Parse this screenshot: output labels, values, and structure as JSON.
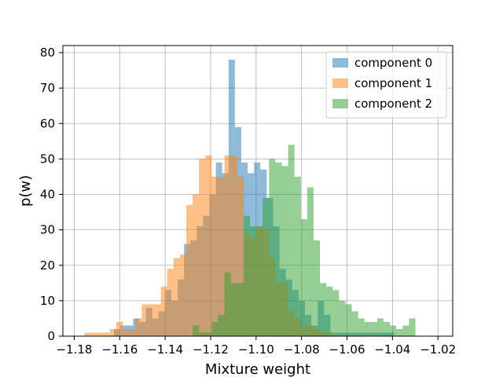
{
  "chart_data": {
    "type": "histogram",
    "title": "",
    "xlabel": "Mixture weight",
    "ylabel": "p(w)",
    "xlim": [
      -1.185,
      -1.0135
    ],
    "ylim": [
      0,
      82
    ],
    "xticks": [
      -1.18,
      -1.16,
      -1.14,
      -1.12,
      -1.1,
      -1.08,
      -1.06,
      -1.04,
      -1.02
    ],
    "xtick_labels": [
      "−1.18",
      "−1.16",
      "−1.14",
      "−1.12",
      "−1.10",
      "−1.08",
      "−1.06",
      "−1.04",
      "−1.02"
    ],
    "yticks": [
      0,
      10,
      20,
      30,
      40,
      50,
      60,
      70,
      80
    ],
    "ytick_labels": [
      "0",
      "10",
      "20",
      "30",
      "40",
      "50",
      "60",
      "70",
      "80"
    ],
    "grid": true,
    "legend_position": "top-right",
    "series": [
      {
        "name": "component 0",
        "color": "#1f77b4",
        "opacity": 0.5,
        "bins": [
          [
            -1.1625,
            -1.1597,
            2
          ],
          [
            -1.1597,
            -1.1569,
            3
          ],
          [
            -1.1569,
            -1.1541,
            3
          ],
          [
            -1.1541,
            -1.1513,
            5
          ],
          [
            -1.1513,
            -1.1485,
            4
          ],
          [
            -1.1485,
            -1.1457,
            8
          ],
          [
            -1.1457,
            -1.1429,
            5
          ],
          [
            -1.1429,
            -1.1401,
            7
          ],
          [
            -1.1401,
            -1.1373,
            13
          ],
          [
            -1.1373,
            -1.1345,
            10
          ],
          [
            -1.1345,
            -1.1317,
            16
          ],
          [
            -1.1317,
            -1.1289,
            26
          ],
          [
            -1.1289,
            -1.1261,
            27
          ],
          [
            -1.1261,
            -1.1233,
            31
          ],
          [
            -1.1233,
            -1.1205,
            34
          ],
          [
            -1.1205,
            -1.1177,
            40
          ],
          [
            -1.1177,
            -1.1149,
            49
          ],
          [
            -1.1149,
            -1.1121,
            46
          ],
          [
            -1.1121,
            -1.1093,
            78
          ],
          [
            -1.1093,
            -1.1065,
            59
          ],
          [
            -1.1065,
            -1.1037,
            49
          ],
          [
            -1.1037,
            -1.1009,
            46
          ],
          [
            -1.1009,
            -1.0981,
            49
          ],
          [
            -1.0981,
            -1.0953,
            47
          ],
          [
            -1.0953,
            -1.0925,
            39
          ],
          [
            -1.0925,
            -1.0897,
            31
          ],
          [
            -1.0897,
            -1.0869,
            19
          ],
          [
            -1.0869,
            -1.0841,
            16
          ],
          [
            -1.0841,
            -1.0813,
            13
          ],
          [
            -1.0813,
            -1.0785,
            10
          ],
          [
            -1.0785,
            -1.0757,
            6
          ],
          [
            -1.0757,
            -1.0729,
            3
          ],
          [
            -1.0729,
            -1.0701,
            10
          ],
          [
            -1.0701,
            -1.0673,
            6
          ],
          [
            -1.0673,
            -1.0645,
            1
          ],
          [
            -1.0645,
            -1.0617,
            1
          ],
          [
            -1.0617,
            -1.0589,
            1
          ],
          [
            -1.0589,
            -1.0561,
            1
          ],
          [
            -1.0561,
            -1.0533,
            1
          ],
          [
            -1.0533,
            -1.0505,
            1
          ],
          [
            -1.0505,
            -1.0477,
            1
          ],
          [
            -1.0477,
            -1.0449,
            1
          ],
          [
            -1.0449,
            -1.0421,
            1
          ],
          [
            -1.0421,
            -1.0393,
            1
          ]
        ]
      },
      {
        "name": "component 1",
        "color": "#ff7f0e",
        "opacity": 0.5,
        "bins": [
          [
            -1.1755,
            -1.1727,
            1
          ],
          [
            -1.1727,
            -1.1699,
            1
          ],
          [
            -1.1699,
            -1.1671,
            1
          ],
          [
            -1.1671,
            -1.1643,
            1
          ],
          [
            -1.1643,
            -1.1615,
            2
          ],
          [
            -1.1615,
            -1.1587,
            4
          ],
          [
            -1.1587,
            -1.1559,
            2
          ],
          [
            -1.1559,
            -1.1531,
            2
          ],
          [
            -1.1531,
            -1.1503,
            5
          ],
          [
            -1.1503,
            -1.1475,
            9
          ],
          [
            -1.1475,
            -1.1447,
            9
          ],
          [
            -1.1447,
            -1.1419,
            9
          ],
          [
            -1.1419,
            -1.1391,
            14
          ],
          [
            -1.1391,
            -1.1363,
            19
          ],
          [
            -1.1363,
            -1.1335,
            22
          ],
          [
            -1.1335,
            -1.1307,
            23
          ],
          [
            -1.1307,
            -1.1279,
            37
          ],
          [
            -1.1279,
            -1.1251,
            40
          ],
          [
            -1.1251,
            -1.1223,
            50
          ],
          [
            -1.1223,
            -1.1195,
            51
          ],
          [
            -1.1195,
            -1.1167,
            45
          ],
          [
            -1.1167,
            -1.1139,
            45
          ],
          [
            -1.1139,
            -1.1111,
            51
          ],
          [
            -1.1111,
            -1.1083,
            51
          ],
          [
            -1.1083,
            -1.1055,
            45
          ],
          [
            -1.1055,
            -1.1027,
            29
          ],
          [
            -1.1027,
            -1.0999,
            28
          ],
          [
            -1.0999,
            -1.0971,
            31
          ],
          [
            -1.0971,
            -1.0943,
            30
          ],
          [
            -1.0943,
            -1.0915,
            22
          ],
          [
            -1.0915,
            -1.0887,
            15
          ],
          [
            -1.0887,
            -1.0859,
            15
          ],
          [
            -1.0859,
            -1.0831,
            7
          ],
          [
            -1.0831,
            -1.0803,
            5
          ],
          [
            -1.0803,
            -1.0775,
            3
          ],
          [
            -1.0775,
            -1.0747,
            3
          ],
          [
            -1.0747,
            -1.0719,
            2
          ],
          [
            -1.0719,
            -1.0691,
            1
          ],
          [
            -1.0691,
            -1.0663,
            1
          ]
        ]
      },
      {
        "name": "component 2",
        "color": "#2ca02c",
        "opacity": 0.5,
        "bins": [
          [
            -1.1279,
            -1.1251,
            3
          ],
          [
            -1.1251,
            -1.1223,
            1
          ],
          [
            -1.1223,
            -1.1195,
            1
          ],
          [
            -1.1195,
            -1.1167,
            4
          ],
          [
            -1.1167,
            -1.1139,
            6
          ],
          [
            -1.1139,
            -1.1111,
            18
          ],
          [
            -1.1111,
            -1.1083,
            15
          ],
          [
            -1.1083,
            -1.1055,
            15
          ],
          [
            -1.1055,
            -1.1027,
            34
          ],
          [
            -1.1027,
            -1.0999,
            31
          ],
          [
            -1.0999,
            -1.0971,
            31
          ],
          [
            -1.0971,
            -1.0943,
            39
          ],
          [
            -1.0943,
            -1.0915,
            50
          ],
          [
            -1.0915,
            -1.0887,
            49
          ],
          [
            -1.0887,
            -1.0859,
            48
          ],
          [
            -1.0859,
            -1.0831,
            54
          ],
          [
            -1.0831,
            -1.0803,
            45
          ],
          [
            -1.0803,
            -1.0775,
            33
          ],
          [
            -1.0775,
            -1.0747,
            42
          ],
          [
            -1.0747,
            -1.0719,
            27
          ],
          [
            -1.0719,
            -1.0691,
            15
          ],
          [
            -1.0691,
            -1.0663,
            14
          ],
          [
            -1.0663,
            -1.0635,
            13
          ],
          [
            -1.0635,
            -1.0607,
            10
          ],
          [
            -1.0607,
            -1.0579,
            9
          ],
          [
            -1.0579,
            -1.0551,
            7
          ],
          [
            -1.0551,
            -1.0523,
            5
          ],
          [
            -1.0523,
            -1.0495,
            4
          ],
          [
            -1.0495,
            -1.0467,
            4
          ],
          [
            -1.0467,
            -1.0439,
            5
          ],
          [
            -1.0439,
            -1.0411,
            4
          ],
          [
            -1.0411,
            -1.0383,
            3
          ],
          [
            -1.0383,
            -1.0355,
            2
          ],
          [
            -1.0355,
            -1.0327,
            3
          ],
          [
            -1.0327,
            -1.0299,
            5
          ]
        ]
      }
    ]
  }
}
